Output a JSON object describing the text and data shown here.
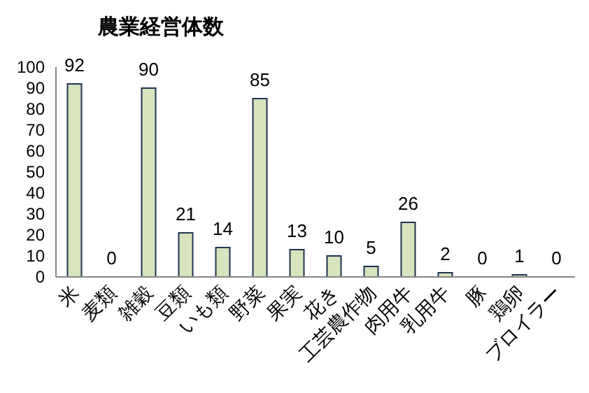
{
  "chart_data": {
    "type": "bar",
    "title": "農業経営体数",
    "categories": [
      "米",
      "麦類",
      "雑穀",
      "豆類",
      "いも類",
      "野菜",
      "果実",
      "花き",
      "工芸農作物",
      "肉用牛",
      "乳用牛",
      "豚",
      "鶏卵",
      "ブロイラー"
    ],
    "values": [
      92,
      0,
      90,
      21,
      14,
      85,
      13,
      10,
      5,
      26,
      2,
      0,
      1,
      0
    ],
    "color": "#d7e4bd",
    "ylim": [
      0,
      100
    ],
    "yticks": [
      0,
      10,
      20,
      30,
      40,
      50,
      60,
      70,
      80,
      90,
      100
    ],
    "data_labels": true,
    "grid": false
  }
}
